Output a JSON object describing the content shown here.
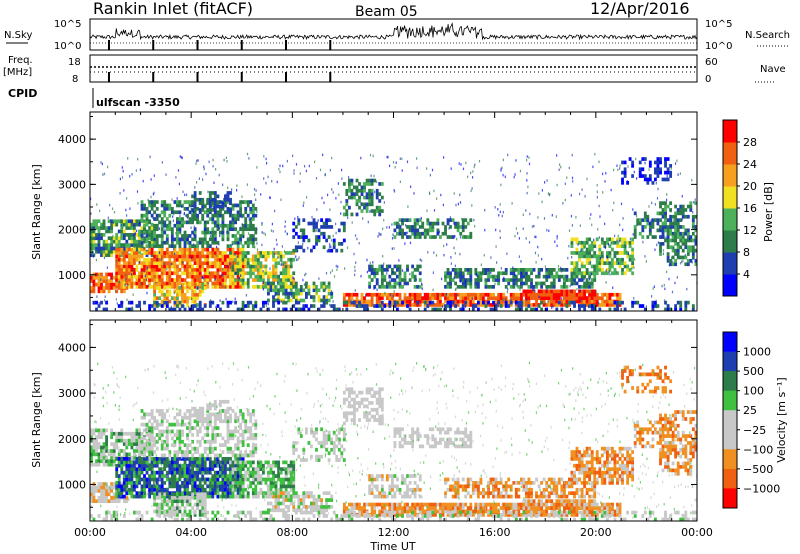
{
  "header": {
    "station": "Rankin Inlet (fitACF)",
    "beam": "Beam 05",
    "date": "12/Apr/2016"
  },
  "top_panels": {
    "nsky_label": "N.Sky",
    "nsky_ticks": [
      "10^5",
      "10^0"
    ],
    "nsearch_label": "N.Search",
    "nsearch_ticks": [
      "10^5",
      "10^0"
    ],
    "freq_label": "Freq.",
    "freq_unit": "[MHz]",
    "freq_ticks": [
      "18",
      "8"
    ],
    "nave_label": "Nave",
    "nave_ticks": [
      "60",
      "0"
    ],
    "cpid_label": "CPID",
    "cpid_value": "ulfscan -3350"
  },
  "colors": {
    "power_scale": [
      "#0000ff",
      "#1f3fb0",
      "#2d7d4a",
      "#4db05a",
      "#f0e020",
      "#f7a020",
      "#f06010",
      "#ff0000"
    ],
    "velocity_scale": [
      "#ff0000",
      "#f06010",
      "#f09020",
      "#c8c8c8",
      "#c8c8c8",
      "#40c040",
      "#2d7d4a",
      "#1f3fb0",
      "#0000ff"
    ]
  },
  "chart_data": [
    {
      "type": "heatmap",
      "name": "power-panel",
      "ylabel": "Slant Range [km]",
      "yticks": [
        "1000",
        "2000",
        "3000",
        "4000"
      ],
      "ylim": [
        200,
        4600
      ],
      "xlim": [
        0,
        24
      ],
      "xtick_labels": [
        "00:00",
        "04:00",
        "08:00",
        "12:00",
        "16:00",
        "20:00",
        "00:00"
      ],
      "colorbar_label": "Power [dB]",
      "colorbar_ticks": [
        "4",
        "8",
        "12",
        "16",
        "20",
        "24",
        "28"
      ]
    },
    {
      "type": "heatmap",
      "name": "velocity-panel",
      "ylabel": "Slant Range [km]",
      "yticks": [
        "1000",
        "2000",
        "3000",
        "4000"
      ],
      "ylim": [
        200,
        4600
      ],
      "xlim": [
        0,
        24
      ],
      "xtick_labels": [
        "00:00",
        "04:00",
        "08:00",
        "12:00",
        "16:00",
        "20:00",
        "00:00"
      ],
      "xlabel": "Time UT",
      "colorbar_label": "Velocity [m s⁻¹]",
      "colorbar_ticks": [
        "1000",
        "500",
        "100",
        "25",
        "−25",
        "−100",
        "−500",
        "−1000"
      ]
    }
  ]
}
